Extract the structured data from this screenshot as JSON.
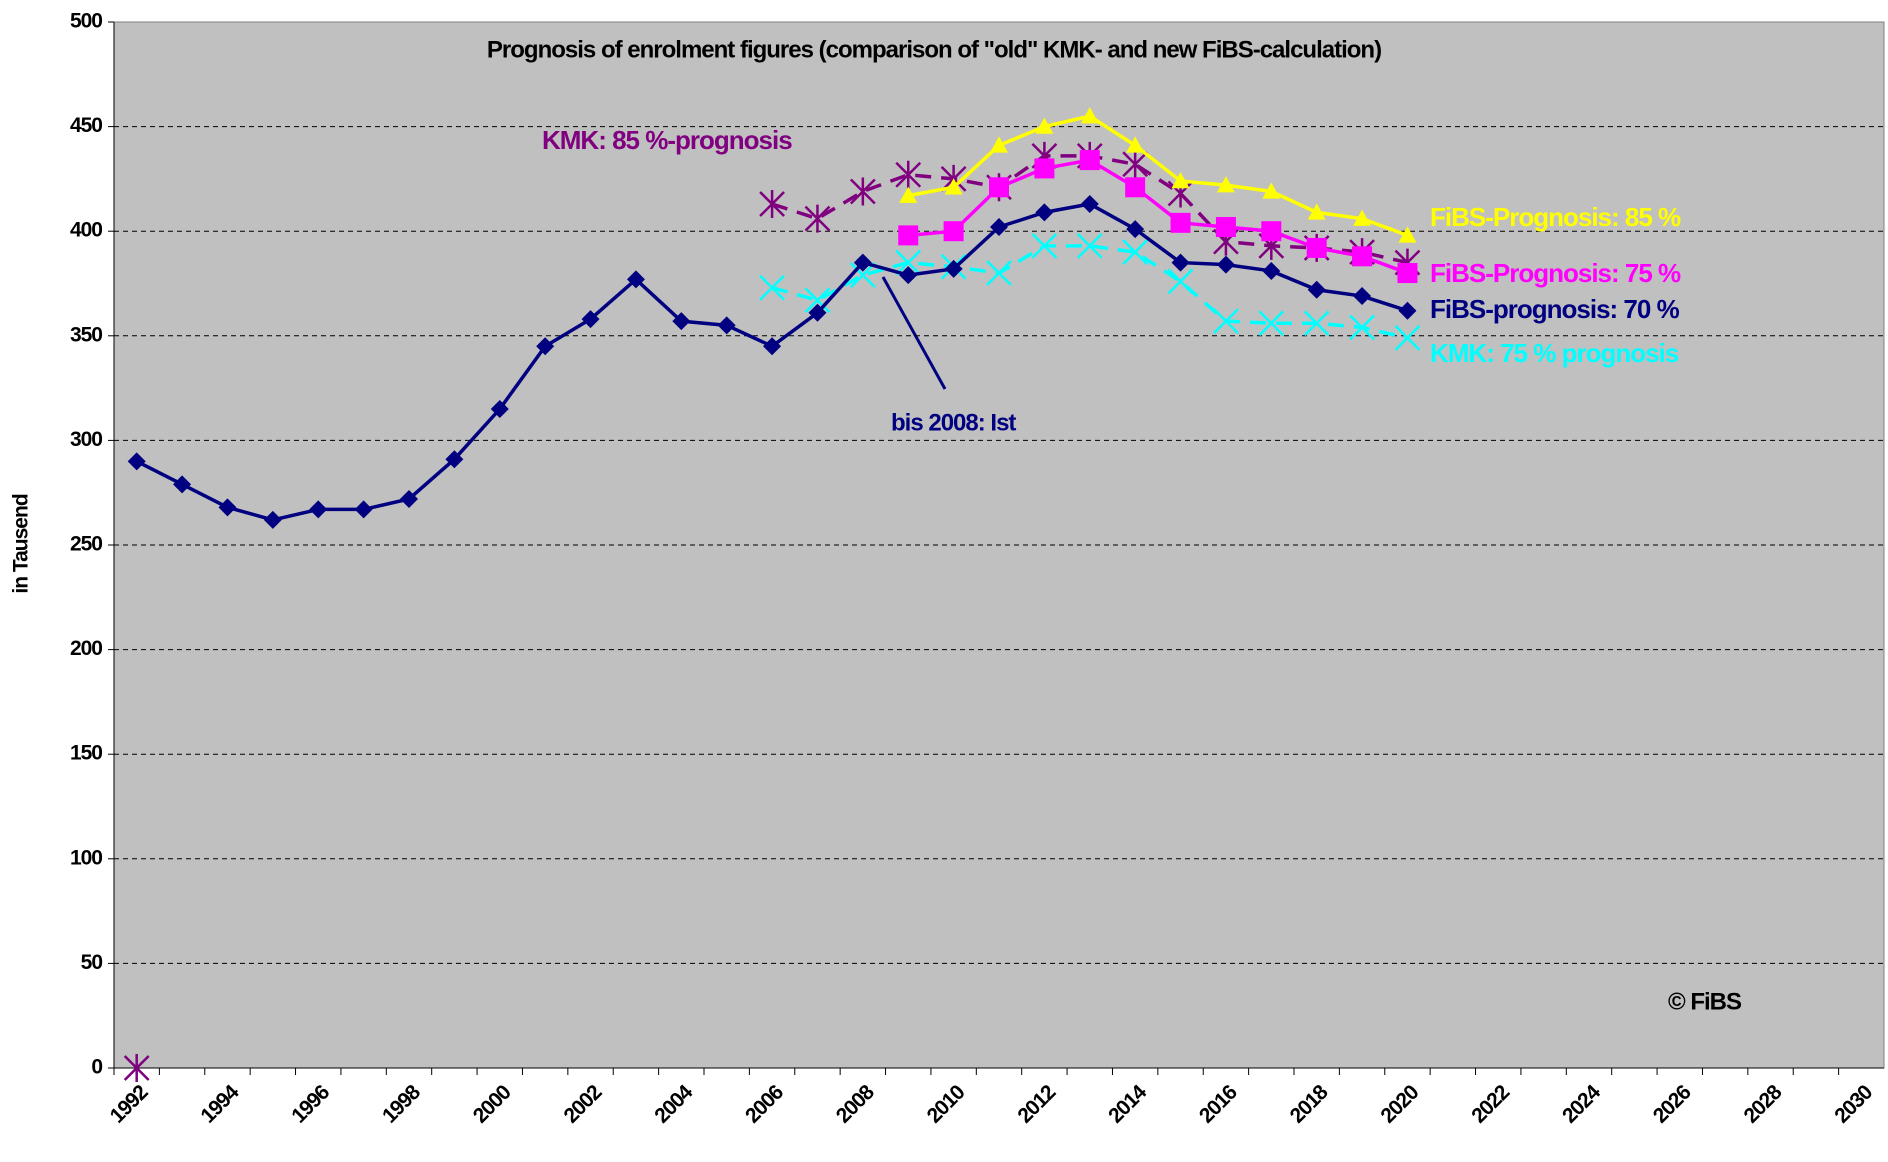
{
  "chart_data": {
    "type": "line",
    "title": "Prognosis of enrolment figures (comparison of \"old\" KMK- and new FiBS-calculation)",
    "y_label": "in Tausend",
    "annotations": [
      "bis 2008: Ist",
      "© FiBS"
    ],
    "categories": [
      "1992",
      null,
      "1994",
      null,
      "1996",
      null,
      "1998",
      null,
      "2000",
      null,
      "2002",
      null,
      "2004",
      null,
      "2006",
      null,
      "2008",
      null,
      "2010",
      null,
      "2012",
      null,
      "2014",
      null,
      "2016",
      null,
      "2018",
      null,
      "2020",
      null,
      "2022",
      null,
      "2024",
      null,
      "2026",
      null,
      "2028",
      null,
      "2030"
    ],
    "ylim": [
      0,
      500
    ],
    "yticks": [
      0,
      50,
      100,
      150,
      200,
      250,
      300,
      350,
      400,
      450,
      500
    ],
    "grid": true,
    "series": [
      {
        "name": "FiBS-prognosis: 70 %",
        "color": "#000080",
        "marker": "diamond",
        "dashed": false,
        "values": [
          290,
          279,
          268,
          262,
          267,
          267,
          272,
          291,
          315,
          345,
          358,
          377,
          357,
          355,
          345,
          361,
          385,
          379,
          382,
          402,
          409,
          413,
          401,
          385,
          384,
          381,
          372,
          369,
          362,
          null,
          null,
          null,
          null,
          null,
          null,
          null,
          null,
          null,
          null
        ]
      },
      {
        "name": "FiBS-Prognosis: 85 %",
        "color": "#ffff00",
        "marker": "triangle",
        "dashed": false,
        "values": [
          null,
          null,
          null,
          null,
          null,
          null,
          null,
          null,
          null,
          null,
          null,
          null,
          null,
          null,
          null,
          null,
          null,
          417,
          421,
          441,
          450,
          455,
          441,
          424,
          422,
          419,
          409,
          406,
          398,
          null,
          null,
          null,
          null,
          null,
          null,
          null,
          null,
          null,
          null
        ]
      },
      {
        "name": "FiBS-Prognosis: 75 %",
        "color": "#ff00ff",
        "marker": "square",
        "dashed": false,
        "values": [
          null,
          null,
          null,
          null,
          null,
          null,
          null,
          null,
          null,
          null,
          null,
          null,
          null,
          null,
          null,
          null,
          null,
          398,
          400,
          421,
          430,
          434,
          421,
          404,
          402,
          400,
          392,
          388,
          380,
          null,
          null,
          null,
          null,
          null,
          null,
          null,
          null,
          null,
          null
        ]
      },
      {
        "name": "KMK: 85 %-prognosis",
        "color": "#800080",
        "marker": "asterisk",
        "dashed": true,
        "values": [
          0,
          null,
          null,
          null,
          null,
          null,
          null,
          null,
          null,
          null,
          null,
          null,
          null,
          null,
          413,
          406,
          419,
          427,
          425,
          421,
          436,
          436,
          432,
          418,
          395,
          393,
          392,
          390,
          385,
          null,
          null,
          null,
          null,
          null,
          null,
          null,
          null,
          null,
          null
        ]
      },
      {
        "name": "KMK: 75 % prognosis",
        "color": "#00ffff",
        "marker": "cross",
        "dashed": true,
        "values": [
          null,
          null,
          null,
          null,
          null,
          null,
          null,
          null,
          null,
          null,
          null,
          null,
          null,
          null,
          373,
          367,
          379,
          385,
          383,
          380,
          393,
          393,
          390,
          376,
          357,
          356,
          356,
          354,
          349,
          null,
          null,
          null,
          null,
          null,
          null,
          null,
          null,
          null,
          null
        ]
      }
    ]
  }
}
